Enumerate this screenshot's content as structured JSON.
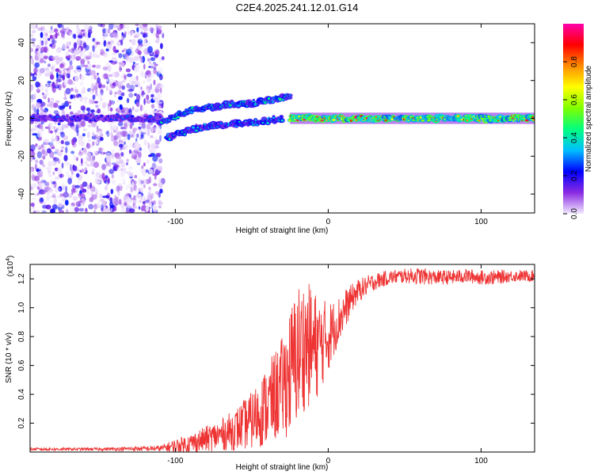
{
  "title": "C2E4.2025.241.12.01.G14",
  "chart_data": [
    {
      "type": "heatmap",
      "xlabel": "Height of straight line (km)",
      "ylabel": "Frequency (Hz)",
      "xlim": [
        -195,
        135
      ],
      "ylim": [
        -50,
        50
      ],
      "xticks": [
        -100,
        0,
        100
      ],
      "xtick_labels": [
        "-100",
        "0",
        "100"
      ],
      "yticks": [
        -40,
        -20,
        0,
        20,
        40
      ],
      "ytick_labels": [
        "-40",
        "-20",
        "0",
        "20",
        "40"
      ],
      "colorbar": {
        "label": "Normalized spectral amplitude",
        "range": [
          0,
          1
        ],
        "ticks": [
          0.0,
          0.2,
          0.4,
          0.6,
          0.8
        ],
        "tick_labels": [
          "0.0",
          "0.2",
          "0.4",
          "0.6",
          "0.8"
        ],
        "colors": [
          "#f2eaff",
          "#8a2be2",
          "#0000ff",
          "#00bfff",
          "#00ff7f",
          "#7fff00",
          "#ffff00",
          "#ff8c00",
          "#ff0000",
          "#ff00aa"
        ]
      },
      "features": [
        {
          "name": "noise-region",
          "x_range": [
            -195,
            -108
          ],
          "y_range": [
            -50,
            50
          ],
          "amplitude": 0.1
        },
        {
          "name": "signal-upper-branch",
          "x": [
            -110,
            -90,
            -70,
            -50,
            -35,
            -25
          ],
          "y": [
            -2,
            4,
            7,
            8,
            10,
            12
          ],
          "amplitude": 0.4
        },
        {
          "name": "signal-lower-branch",
          "x": [
            -105,
            -85,
            -65,
            -45,
            -30
          ],
          "y": [
            -10,
            -5,
            -3,
            -2,
            0
          ],
          "amplitude": 0.35
        },
        {
          "name": "carrier-line",
          "x": [
            -195,
            -110
          ],
          "y": [
            0,
            0
          ],
          "amplitude": 0.25
        },
        {
          "name": "carrier-line-strong",
          "x": [
            -25,
            135
          ],
          "y": [
            0,
            0
          ],
          "amplitude": 0.8
        }
      ]
    },
    {
      "type": "line",
      "xlabel": "Height of straight line (km)",
      "ylabel": "SNR (10 * v/v)",
      "multiplier_label": "(x10",
      "multiplier_exp": "4",
      "multiplier_close": ")",
      "xlim": [
        -195,
        135
      ],
      "ylim": [
        0,
        1.3
      ],
      "xticks": [
        -100,
        0,
        100
      ],
      "xtick_labels": [
        "-100",
        "0",
        "100"
      ],
      "yticks": [
        0.2,
        0.4,
        0.6,
        0.8,
        1.0,
        1.2
      ],
      "ytick_labels": [
        "0.2",
        "0.4",
        "0.6",
        "0.8",
        "1.0",
        "1.2"
      ],
      "color": "#ee3333",
      "series": [
        {
          "name": "SNR",
          "x": [
            -195,
            -150,
            -110,
            -100,
            -90,
            -80,
            -70,
            -60,
            -50,
            -40,
            -30,
            -25,
            -20,
            -15,
            -10,
            -5,
            0,
            5,
            10,
            15,
            20,
            30,
            40,
            50,
            60,
            70,
            80,
            90,
            100,
            110,
            120,
            135
          ],
          "y": [
            0.02,
            0.02,
            0.025,
            0.04,
            0.06,
            0.09,
            0.12,
            0.16,
            0.22,
            0.32,
            0.45,
            0.55,
            0.68,
            0.75,
            0.72,
            0.75,
            0.8,
            0.88,
            0.97,
            1.06,
            1.12,
            1.18,
            1.21,
            1.22,
            1.22,
            1.21,
            1.21,
            1.22,
            1.21,
            1.21,
            1.22,
            1.22
          ],
          "spread": [
            0.01,
            0.01,
            0.02,
            0.05,
            0.07,
            0.09,
            0.11,
            0.15,
            0.2,
            0.28,
            0.35,
            0.45,
            0.5,
            0.45,
            0.42,
            0.32,
            0.25,
            0.18,
            0.15,
            0.1,
            0.08,
            0.06,
            0.05,
            0.05,
            0.06,
            0.05,
            0.05,
            0.05,
            0.05,
            0.05,
            0.04,
            0.04
          ]
        }
      ]
    }
  ]
}
